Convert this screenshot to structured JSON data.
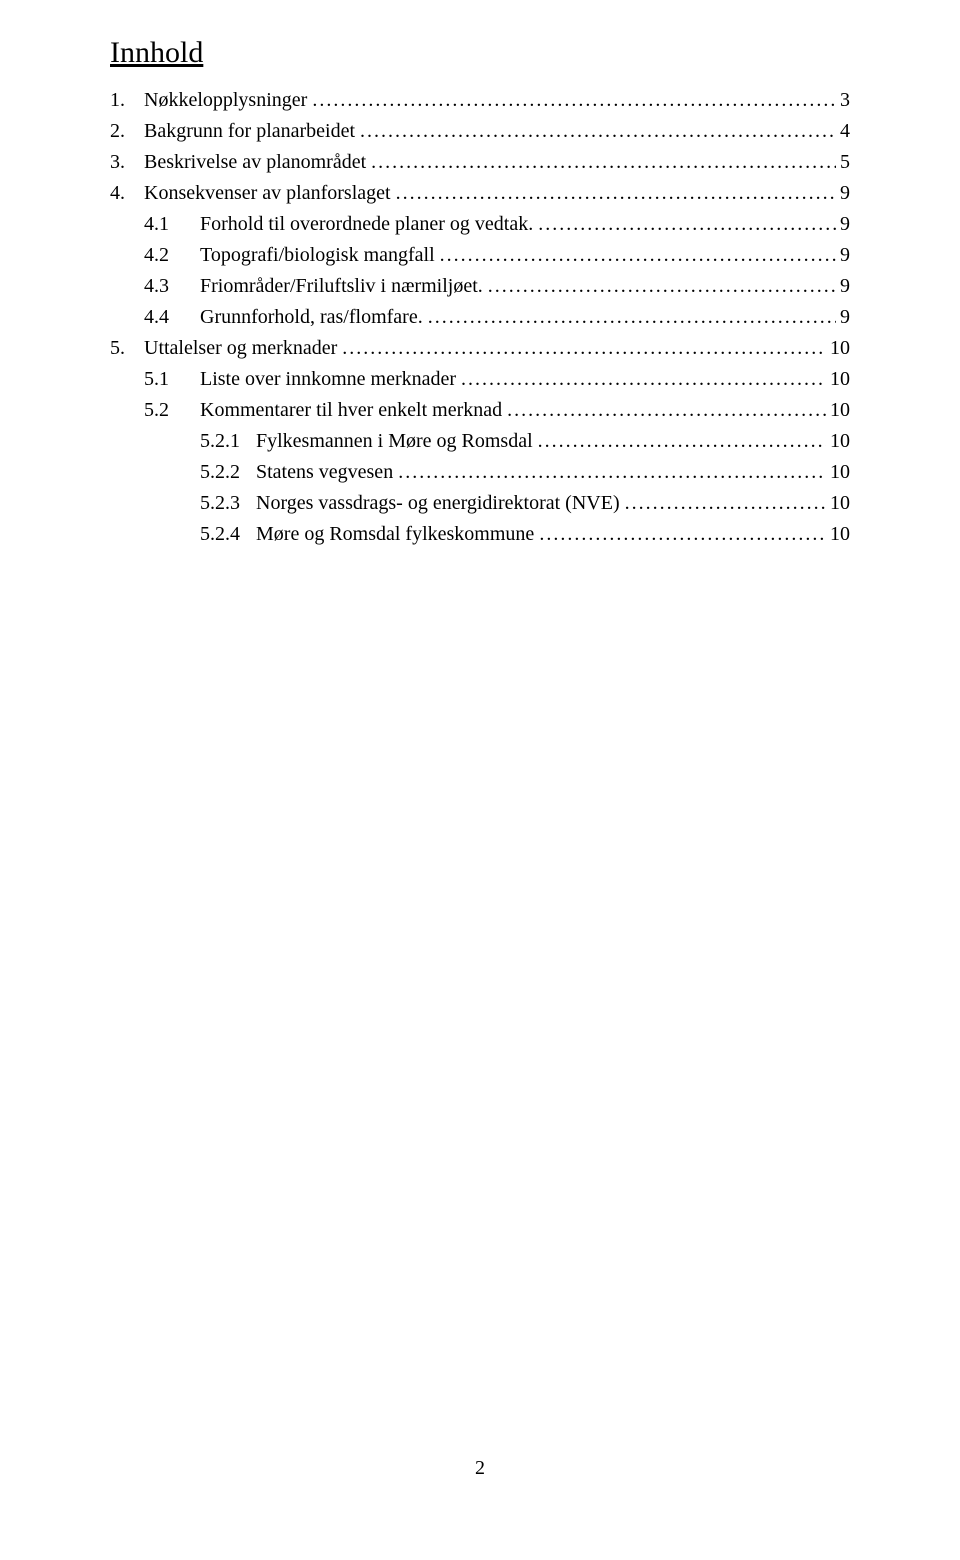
{
  "heading": "Innhold",
  "page_number": "2",
  "toc": [
    {
      "level": 1,
      "num": "1.",
      "label": "Nøkkelopplysninger",
      "page": "3"
    },
    {
      "level": 1,
      "num": "2.",
      "label": "Bakgrunn for planarbeidet",
      "page": "4"
    },
    {
      "level": 1,
      "num": "3.",
      "label": "Beskrivelse av planområdet",
      "page": "5"
    },
    {
      "level": 1,
      "num": "4.",
      "label": "Konsekvenser av planforslaget",
      "page": "9"
    },
    {
      "level": 2,
      "num": "4.1",
      "label": "Forhold til overordnede planer og vedtak.",
      "page": "9"
    },
    {
      "level": 2,
      "num": "4.2",
      "label": "Topografi/biologisk mangfall",
      "page": "9"
    },
    {
      "level": 2,
      "num": "4.3",
      "label": "Friområder/Friluftsliv i nærmiljøet.",
      "page": "9"
    },
    {
      "level": 2,
      "num": "4.4",
      "label": "Grunnforhold, ras/flomfare.",
      "page": "9"
    },
    {
      "level": 1,
      "num": "5.",
      "label": "Uttalelser og merknader",
      "page": "10"
    },
    {
      "level": 2,
      "num": "5.1",
      "label": "Liste over innkomne merknader",
      "page": "10"
    },
    {
      "level": 2,
      "num": "5.2",
      "label": "Kommentarer til hver enkelt merknad",
      "page": "10"
    },
    {
      "level": 3,
      "num": "5.2.1",
      "label": "Fylkesmannen i Møre og Romsdal",
      "page": "10"
    },
    {
      "level": 3,
      "num": "5.2.2",
      "label": "Statens vegvesen",
      "page": "10"
    },
    {
      "level": 3,
      "num": "5.2.3",
      "label": "Norges vassdrags- og energidirektorat (NVE)",
      "page": "10"
    },
    {
      "level": 3,
      "num": "5.2.4",
      "label": "Møre og Romsdal fylkeskommune",
      "page": "10"
    }
  ]
}
